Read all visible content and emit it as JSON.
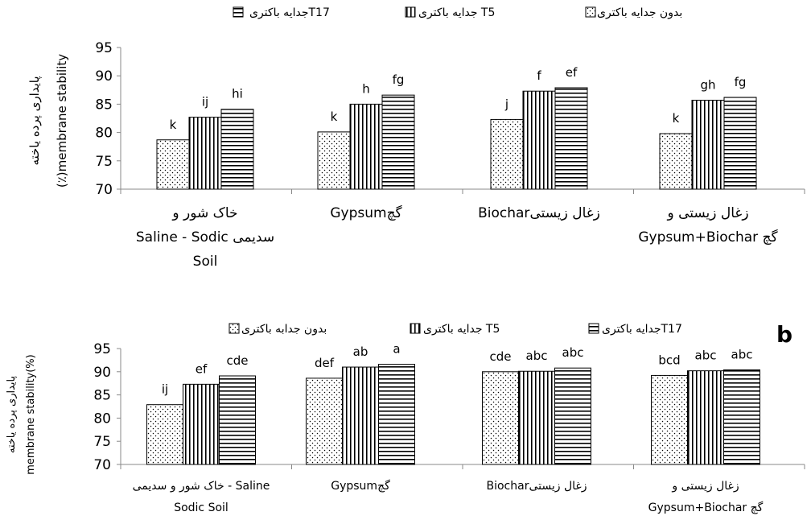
{
  "chart_data": [
    {
      "type": "bar",
      "panel": "",
      "ylabel_fa": "پایداری پرده یاخته",
      "ylabel": "(٪)membrane stability",
      "ylim": [
        70,
        95
      ],
      "yticks": [
        70,
        75,
        80,
        85,
        90,
        95
      ],
      "categories": [
        [
          "خاک شور و",
          "Saline - Sodic سدیمی",
          "Soil"
        ],
        [
          "Gypsumگچ"
        ],
        [
          "Biocharزغال زیستی"
        ],
        [
          "زغال زیستی و",
          "Gypsum+Biochar گچ"
        ]
      ],
      "series": [
        {
          "name": "بدون جدایه باکتری",
          "pattern": "dots",
          "values": [
            78.7,
            80.1,
            82.3,
            79.8
          ],
          "labels": [
            "k",
            "k",
            "j",
            "k"
          ]
        },
        {
          "name": "جدایه باکتری T5",
          "pattern": "vertical",
          "values": [
            82.7,
            85.0,
            87.3,
            85.7
          ],
          "labels": [
            "ij",
            "h",
            "f",
            "gh"
          ]
        },
        {
          "name": "جدایه باکتریT17",
          "pattern": "horizontal",
          "values": [
            84.1,
            86.6,
            87.9,
            86.2
          ],
          "labels": [
            "hi",
            "fg",
            "ef",
            "fg"
          ]
        }
      ],
      "legend": "top"
    },
    {
      "type": "bar",
      "panel": "b",
      "ylabel_fa": "پایداری پرده یاخته",
      "ylabel": "membrane stability(%)",
      "ylim": [
        70,
        95
      ],
      "yticks": [
        70,
        75,
        80,
        85,
        90,
        95
      ],
      "categories": [
        [
          "خاک شور و سدیمی - Saline",
          "Sodic Soil"
        ],
        [
          "Gypsumگچ"
        ],
        [
          "Biocharزغال زیستی"
        ],
        [
          "زغال زیستی و",
          "Gypsum+Biochar گچ"
        ]
      ],
      "series": [
        {
          "name": "بدون جدابه باکتری",
          "pattern": "dots",
          "values": [
            82.9,
            88.6,
            90.0,
            89.2
          ],
          "labels": [
            "ij",
            "def",
            "cde",
            "bcd"
          ]
        },
        {
          "name": "جدایه باکتری T5",
          "pattern": "vertical",
          "values": [
            87.3,
            91.0,
            90.1,
            90.2
          ],
          "labels": [
            "ef",
            "ab",
            "abc",
            "abc"
          ]
        },
        {
          "name": "جدایه باکتریT17",
          "pattern": "horizontal",
          "values": [
            89.1,
            91.6,
            90.8,
            90.4
          ],
          "labels": [
            "cde",
            "a",
            "abc",
            "abc"
          ]
        }
      ],
      "legend": "top"
    }
  ]
}
